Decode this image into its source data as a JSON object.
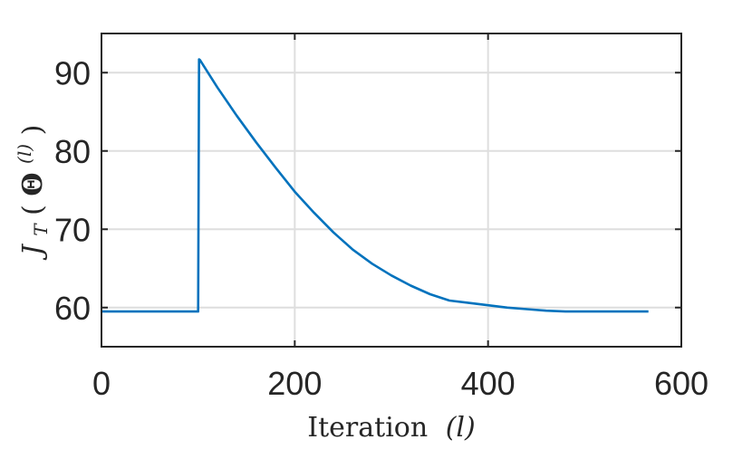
{
  "chart_data": {
    "type": "line",
    "xlabel": {
      "text": "Iteration",
      "var": "(l)"
    },
    "ylabel": {
      "main": "J",
      "sub": "T",
      "open": "(",
      "theta": "Θ",
      "sup": "(l)",
      "close": ")"
    },
    "xlim": [
      0,
      600
    ],
    "ylim": [
      55,
      95
    ],
    "xticks": [
      0,
      200,
      400,
      600
    ],
    "yticks": [
      60,
      70,
      80,
      90
    ],
    "xtick_labels": [
      "0",
      "200",
      "400",
      "600"
    ],
    "ytick_labels": [
      "60",
      "70",
      "80",
      "90"
    ],
    "grid": true,
    "series": [
      {
        "color": "#0072BD",
        "x": [
          0,
          100,
          101,
          102,
          120,
          140,
          160,
          180,
          200,
          220,
          240,
          260,
          280,
          300,
          320,
          340,
          360,
          380,
          400,
          420,
          440,
          460,
          480,
          500,
          520,
          540,
          566
        ],
        "y": [
          59.5,
          59.5,
          91.7,
          91.6,
          88.1,
          84.5,
          81.1,
          77.9,
          74.8,
          72.1,
          69.6,
          67.4,
          65.6,
          64.1,
          62.8,
          61.7,
          60.9,
          60.6,
          60.3,
          60.0,
          59.8,
          59.6,
          59.5,
          59.5,
          59.5,
          59.5,
          59.5
        ]
      }
    ]
  }
}
